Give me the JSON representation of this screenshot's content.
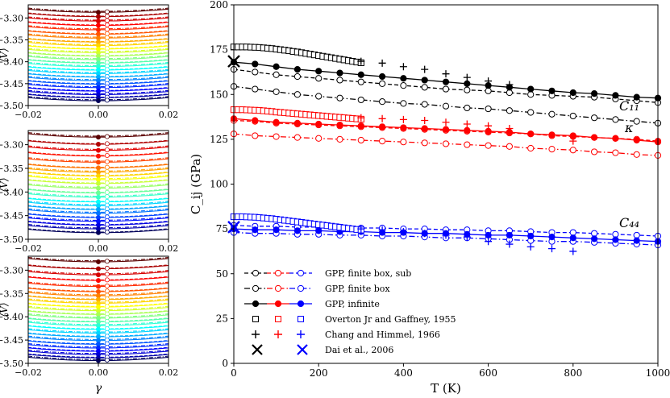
{
  "small_panels": {
    "ylabel": "⟨V⟩",
    "xlabel": "γ",
    "xlim": [
      -0.02,
      0.02
    ],
    "ylim": [
      -3.5,
      -3.27
    ],
    "xticks": [
      "−0.02",
      "0.00",
      "0.02"
    ],
    "yticks": [
      "−3.30",
      "−3.35",
      "−3.40",
      "−3.45",
      "−3.50"
    ],
    "panel_1_minima": [
      -3.287,
      -3.297,
      -3.307,
      -3.317,
      -3.327,
      -3.337,
      -3.346,
      -3.355,
      -3.363,
      -3.371,
      -3.379,
      -3.387,
      -3.395,
      -3.403,
      -3.411,
      -3.419,
      -3.427,
      -3.435,
      -3.443,
      -3.451,
      -3.459,
      -3.467,
      -3.475,
      -3.482,
      -3.489
    ],
    "panel_2_minima": [
      -3.284,
      -3.299,
      -3.312,
      -3.324,
      -3.337,
      -3.349,
      -3.358,
      -3.366,
      -3.374,
      -3.382,
      -3.392,
      -3.402,
      -3.411,
      -3.421,
      -3.429,
      -3.437,
      -3.445,
      -3.454,
      -3.462,
      -3.47,
      -3.478,
      -3.486
    ],
    "panel_3_minima": [
      -3.282,
      -3.297,
      -3.31,
      -3.322,
      -3.335,
      -3.346,
      -3.355,
      -3.363,
      -3.371,
      -3.379,
      -3.387,
      -3.395,
      -3.403,
      -3.411,
      -3.419,
      -3.427,
      -3.435,
      -3.443,
      -3.451,
      -3.459,
      -3.467,
      -3.474,
      -3.481,
      -3.488,
      -3.494
    ]
  },
  "chart_data": {
    "type": "line",
    "xlabel": "T (K)",
    "ylabel": "C_ij (GPa)",
    "xlim": [
      0,
      1000
    ],
    "ylim": [
      0,
      200
    ],
    "xticks": [
      "0",
      "200",
      "400",
      "600",
      "800",
      "1000"
    ],
    "yticks": [
      "0",
      "25",
      "50",
      "75",
      "100",
      "125",
      "150",
      "175",
      "200"
    ],
    "curve_labels": [
      "C₁₁",
      "κ",
      "C₄₄"
    ],
    "colors": {
      "C11": "#000000",
      "kappa": "#ff0000",
      "C44": "#0000ff"
    },
    "series": [
      {
        "name": "GPP, finite box, sub",
        "quantity": "C11",
        "style": "dashed-open",
        "x": [
          0,
          50,
          100,
          150,
          200,
          250,
          300,
          350,
          400,
          450,
          500,
          550,
          600,
          650,
          700,
          750,
          800,
          850,
          900,
          950,
          1000
        ],
        "y": [
          164,
          162.5,
          161,
          160,
          159,
          158,
          157,
          156,
          155,
          154,
          153,
          152.5,
          152,
          151,
          150,
          149.5,
          149,
          148.5,
          147.5,
          146.5,
          145.5
        ]
      },
      {
        "name": "GPP, finite box",
        "quantity": "C11",
        "style": "dashdot-open",
        "x": [
          0,
          50,
          100,
          150,
          200,
          250,
          300,
          350,
          400,
          450,
          500,
          550,
          600,
          650,
          700,
          750,
          800,
          850,
          900,
          950,
          1000
        ],
        "y": [
          154.5,
          153,
          151.5,
          150,
          149,
          148,
          147,
          146,
          145,
          144.5,
          143.5,
          142.5,
          142,
          141,
          140,
          139,
          138,
          137,
          136,
          135,
          134
        ]
      },
      {
        "name": "GPP, infinite",
        "quantity": "C11",
        "style": "solid-filled",
        "x": [
          0,
          50,
          100,
          150,
          200,
          250,
          300,
          350,
          400,
          450,
          500,
          550,
          600,
          650,
          700,
          750,
          800,
          850,
          900,
          950,
          1000
        ],
        "y": [
          168,
          167,
          165.5,
          164,
          163,
          162,
          161,
          160,
          159,
          158,
          157,
          156,
          155,
          154,
          153,
          152,
          151,
          150.5,
          149.5,
          148.5,
          148
        ]
      },
      {
        "name": "GPP, finite box, sub",
        "quantity": "kappa",
        "style": "dashed-open",
        "x": [
          0,
          50,
          100,
          150,
          200,
          250,
          300,
          350,
          400,
          450,
          500,
          550,
          600,
          650,
          700,
          750,
          800,
          850,
          900,
          950,
          1000
        ],
        "y": [
          135.5,
          135,
          134,
          133.5,
          133,
          132.5,
          132,
          131.5,
          131,
          130.5,
          130,
          129.5,
          129,
          128.5,
          128,
          127,
          126.5,
          126,
          125.5,
          125,
          124
        ]
      },
      {
        "name": "GPP, finite box",
        "quantity": "kappa",
        "style": "dashdot-open",
        "x": [
          0,
          50,
          100,
          150,
          200,
          250,
          300,
          350,
          400,
          450,
          500,
          550,
          600,
          650,
          700,
          750,
          800,
          850,
          900,
          950,
          1000
        ],
        "y": [
          128,
          127,
          126.5,
          126,
          125.5,
          125,
          124.5,
          124,
          123.5,
          123,
          122.5,
          122,
          121.5,
          121,
          120,
          119.5,
          119,
          118,
          117.5,
          116.5,
          116
        ]
      },
      {
        "name": "GPP, infinite",
        "quantity": "kappa",
        "style": "solid-filled",
        "x": [
          0,
          50,
          100,
          150,
          200,
          250,
          300,
          350,
          400,
          450,
          500,
          550,
          600,
          650,
          700,
          750,
          800,
          850,
          900,
          950,
          1000
        ],
        "y": [
          136.5,
          135.5,
          134.5,
          134,
          133.5,
          133,
          132.5,
          132,
          131.5,
          131,
          130.5,
          130,
          129.5,
          129,
          128,
          127.5,
          127,
          126,
          125.5,
          124.5,
          123.5
        ]
      },
      {
        "name": "GPP, finite box, sub",
        "quantity": "C44",
        "style": "dashed-open",
        "x": [
          0,
          50,
          100,
          150,
          200,
          250,
          300,
          350,
          400,
          450,
          500,
          550,
          600,
          650,
          700,
          750,
          800,
          850,
          900,
          950,
          1000
        ],
        "y": [
          77,
          76.5,
          76.5,
          76,
          76,
          76,
          75.5,
          75.5,
          75,
          75,
          74.5,
          74.5,
          74,
          74,
          73.5,
          73,
          73,
          72.5,
          72,
          71.5,
          71
        ]
      },
      {
        "name": "GPP, finite box",
        "quantity": "C44",
        "style": "dashdot-open",
        "x": [
          0,
          50,
          100,
          150,
          200,
          250,
          300,
          350,
          400,
          450,
          500,
          550,
          600,
          650,
          700,
          750,
          800,
          850,
          900,
          950,
          1000
        ],
        "y": [
          73,
          72.5,
          72.5,
          72,
          72,
          71.5,
          71.5,
          71,
          71,
          70.5,
          70,
          70,
          69.5,
          69,
          68.5,
          68,
          68,
          67.5,
          67,
          66.5,
          66
        ]
      },
      {
        "name": "GPP, infinite",
        "quantity": "C44",
        "style": "solid-filled",
        "x": [
          0,
          50,
          100,
          150,
          200,
          250,
          300,
          350,
          400,
          450,
          500,
          550,
          600,
          650,
          700,
          750,
          800,
          850,
          900,
          950,
          1000
        ],
        "y": [
          75,
          74.5,
          74.5,
          74,
          74,
          73.5,
          73.5,
          73,
          73,
          72.5,
          72.5,
          72,
          71.5,
          71.5,
          71,
          70.5,
          70,
          69.5,
          69,
          68.5,
          68
        ]
      },
      {
        "name": "Overton Jr and Gaffney, 1955",
        "quantity": "C11",
        "style": "square",
        "x": [
          0,
          10,
          20,
          30,
          40,
          50,
          60,
          70,
          80,
          90,
          100,
          110,
          120,
          130,
          140,
          150,
          160,
          170,
          180,
          190,
          200,
          210,
          220,
          230,
          240,
          250,
          260,
          270,
          280,
          290,
          300
        ],
        "y": [
          176.5,
          176.5,
          176.5,
          176.5,
          176.4,
          176.3,
          176.2,
          176,
          175.8,
          175.6,
          175.3,
          175,
          174.7,
          174.4,
          174,
          173.7,
          173.3,
          172.9,
          172.5,
          172.1,
          171.7,
          171.3,
          170.9,
          170.5,
          170.1,
          169.7,
          169.3,
          168.9,
          168.5,
          168.1,
          167.7
        ]
      },
      {
        "name": "Overton Jr and Gaffney, 1955",
        "quantity": "kappa",
        "style": "square",
        "x": [
          0,
          10,
          20,
          30,
          40,
          50,
          60,
          70,
          80,
          90,
          100,
          110,
          120,
          130,
          140,
          150,
          160,
          170,
          180,
          190,
          200,
          210,
          220,
          230,
          240,
          250,
          260,
          270,
          280,
          290,
          300
        ],
        "y": [
          141.5,
          141.5,
          141.5,
          141.4,
          141.3,
          141.2,
          141.1,
          140.9,
          140.7,
          140.5,
          140.2,
          140,
          139.8,
          139.6,
          139.4,
          139.2,
          139,
          138.8,
          138.6,
          138.4,
          138.2,
          138,
          137.8,
          137.6,
          137.4,
          137.2,
          137,
          136.8,
          136.6,
          136.4,
          136.2
        ]
      },
      {
        "name": "Overton Jr and Gaffney, 1955",
        "quantity": "C44",
        "style": "square",
        "x": [
          0,
          10,
          20,
          30,
          40,
          50,
          60,
          70,
          80,
          90,
          100,
          110,
          120,
          130,
          140,
          150,
          160,
          170,
          180,
          190,
          200,
          210,
          220,
          230,
          240,
          250,
          260,
          270,
          280,
          290,
          300
        ],
        "y": [
          81.8,
          81.8,
          81.8,
          81.7,
          81.6,
          81.5,
          81.3,
          81.1,
          80.9,
          80.7,
          80.4,
          80.1,
          79.8,
          79.5,
          79.2,
          78.9,
          78.6,
          78.3,
          78,
          77.7,
          77.4,
          77.1,
          76.8,
          76.5,
          76.2,
          75.9,
          75.6,
          75.3,
          75,
          74.7,
          74.4
        ]
      },
      {
        "name": "Chang and Himmel, 1966",
        "quantity": "C11",
        "style": "plus",
        "x": [
          300,
          350,
          400,
          450,
          500,
          550,
          600,
          650
        ],
        "y": [
          168.5,
          167.5,
          165.5,
          164,
          161.5,
          159.5,
          157.5,
          155.5
        ]
      },
      {
        "name": "Chang and Himmel, 1966",
        "quantity": "kappa",
        "style": "plus",
        "x": [
          300,
          350,
          400,
          450,
          500,
          550,
          600,
          650,
          800
        ],
        "y": [
          137,
          136.5,
          136,
          135.5,
          134.5,
          133.5,
          132.5,
          131,
          124
        ]
      },
      {
        "name": "Chang and Himmel, 1966",
        "quantity": "C44",
        "style": "plus",
        "x": [
          300,
          350,
          400,
          450,
          500,
          550,
          600,
          650,
          700,
          750,
          800
        ],
        "y": [
          75,
          74.5,
          73.5,
          72.5,
          71.5,
          70.5,
          68,
          66.5,
          65,
          64,
          62.5
        ]
      },
      {
        "name": "Dai et al., 2006",
        "quantity": "C11",
        "style": "cross",
        "x": [
          0
        ],
        "y": [
          168.5
        ]
      },
      {
        "name": "Dai et al., 2006",
        "quantity": "C44",
        "style": "cross",
        "x": [
          0
        ],
        "y": [
          76
        ]
      }
    ],
    "legend": {
      "placement": "lower-left",
      "entries": [
        {
          "label": "GPP, finite box, sub",
          "style": "dashed-open",
          "colors": [
            "#000000",
            "#ff0000",
            "#0000ff"
          ]
        },
        {
          "label": "GPP, finite box",
          "style": "dashdot-open",
          "colors": [
            "#000000",
            "#ff0000",
            "#0000ff"
          ]
        },
        {
          "label": "GPP, infinite",
          "style": "solid-filled",
          "colors": [
            "#000000",
            "#ff0000",
            "#0000ff"
          ]
        },
        {
          "label": "Overton Jr and Gaffney, 1955",
          "style": "square",
          "colors": [
            "#000000",
            "#ff0000",
            "#0000ff"
          ]
        },
        {
          "label": "Chang and Himmel, 1966",
          "style": "plus",
          "colors": [
            "#000000",
            "#ff0000",
            "#0000ff"
          ]
        },
        {
          "label": "Dai et al., 2006",
          "style": "cross",
          "colors": [
            "#000000",
            "#0000ff"
          ]
        }
      ]
    }
  }
}
